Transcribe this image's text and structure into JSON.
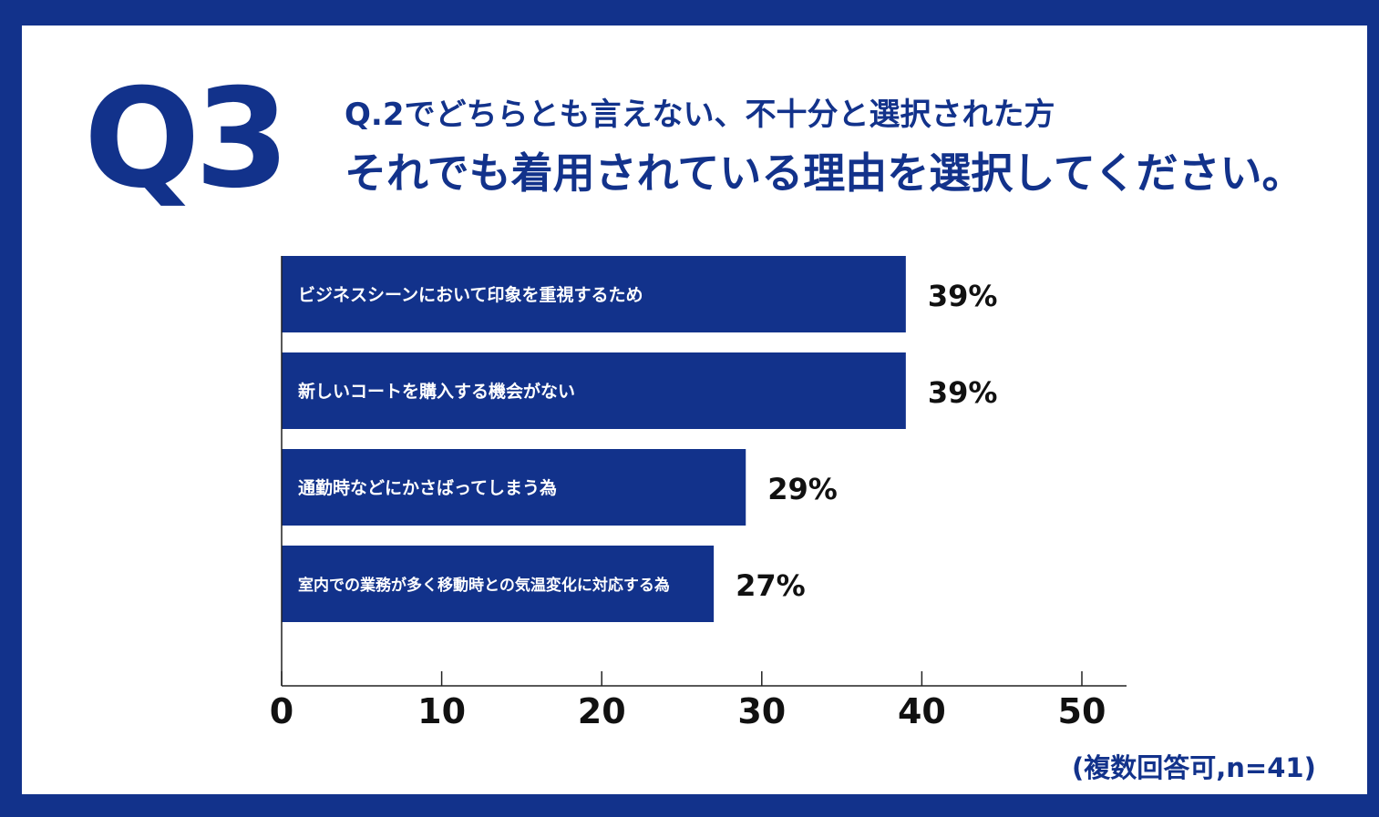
{
  "header": {
    "q_label": "Q3",
    "line1": "Q.2でどちらとも言えない、不十分と選択された方",
    "line2": "それでも着用されている理由を選択してください。"
  },
  "footnote": "(複数回答可,n=41)",
  "colors": {
    "bar": "#12328b",
    "frame": "#12328b",
    "text_dark": "#111111",
    "bar_text": "#ffffff"
  },
  "chart_data": {
    "type": "bar",
    "orientation": "horizontal",
    "categories": [
      "ビジネスシーンにおいて印象を重視するため",
      "新しいコートを購入する機会がない",
      "通勤時などにかさばってしまう為",
      "室内での業務が多く移動時との気温変化に対応する為"
    ],
    "values": [
      39,
      39,
      29,
      27
    ],
    "value_labels": [
      "39%",
      "39%",
      "29%",
      "27%"
    ],
    "xlim": [
      0,
      50
    ],
    "xticks": [
      "0",
      "10",
      "20",
      "30",
      "40",
      "50"
    ],
    "grid": false
  }
}
